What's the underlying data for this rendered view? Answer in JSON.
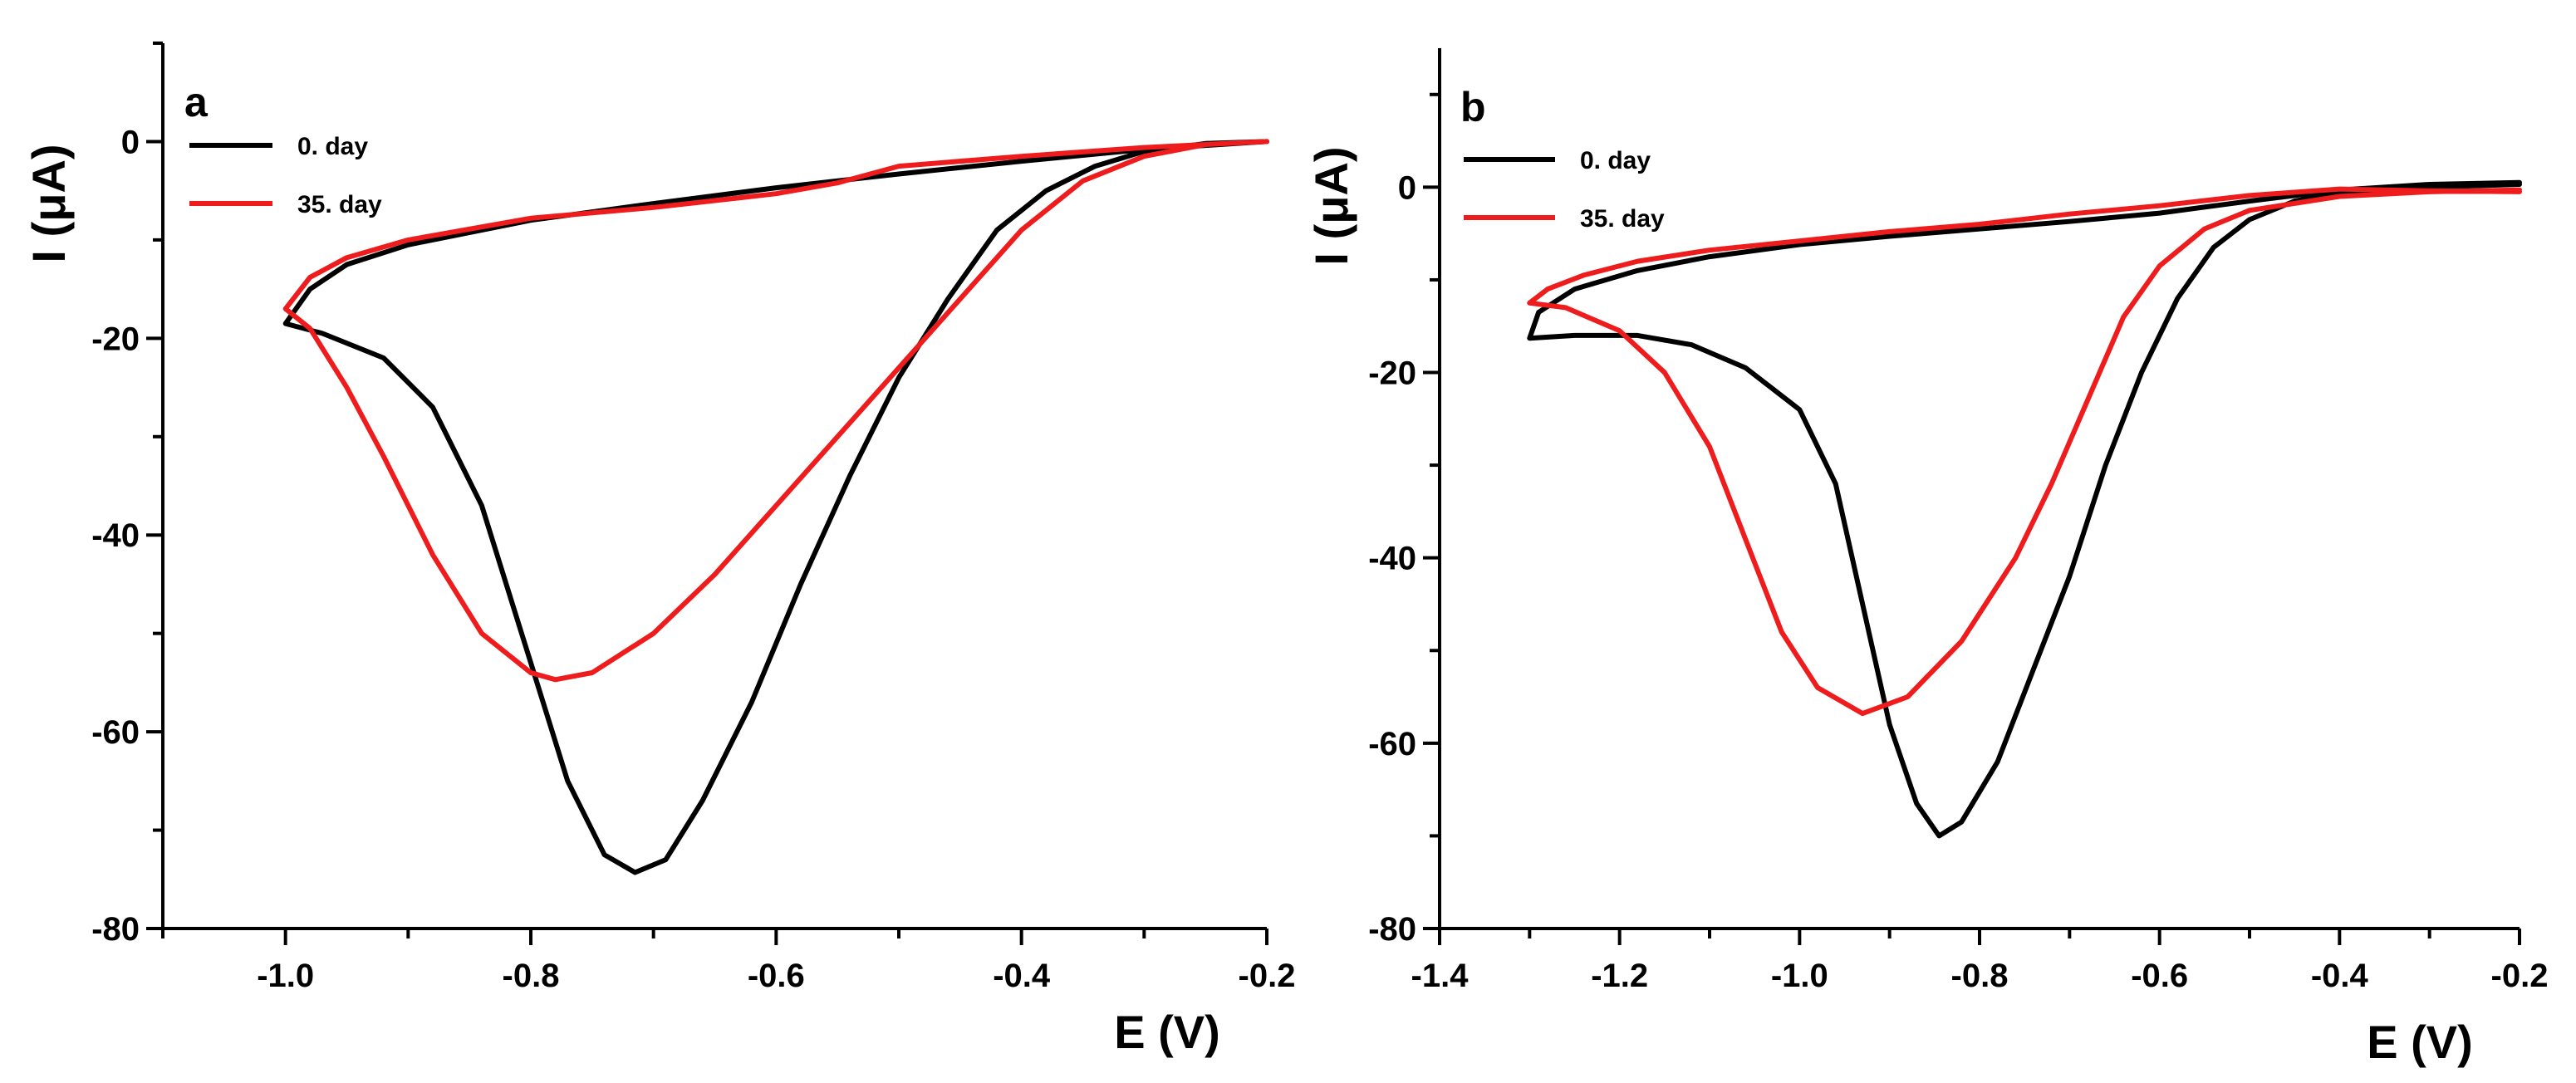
{
  "chart_data": [
    {
      "type": "line",
      "panel_label": "a",
      "xlabel": "E (V)",
      "ylabel": "I (μA)",
      "xlim": [
        -1.1,
        -0.2
      ],
      "ylim": [
        -80,
        10
      ],
      "xticks": [
        -1.0,
        -0.8,
        -0.6,
        -0.4,
        -0.2
      ],
      "xtick_labels": [
        "-1.0",
        "-0.8",
        "-0.6",
        "-0.4",
        "-0.2"
      ],
      "yticks": [
        -80,
        -60,
        -40,
        -20,
        0
      ],
      "ytick_labels": [
        "-80",
        "-60",
        "-40",
        "-20",
        "0"
      ],
      "legend_position": "top-left",
      "series": [
        {
          "name": "0. day",
          "color": "#000000",
          "points": [
            [
              -0.2,
              0
            ],
            [
              -0.3,
              -0.8
            ],
            [
              -0.4,
              -2.0
            ],
            [
              -0.5,
              -3.3
            ],
            [
              -0.6,
              -4.7
            ],
            [
              -0.7,
              -6.3
            ],
            [
              -0.8,
              -8.0
            ],
            [
              -0.9,
              -10.5
            ],
            [
              -0.95,
              -12.5
            ],
            [
              -0.98,
              -15
            ],
            [
              -1.0,
              -18.5
            ],
            [
              -0.97,
              -19.5
            ],
            [
              -0.92,
              -22
            ],
            [
              -0.88,
              -27
            ],
            [
              -0.84,
              -37
            ],
            [
              -0.8,
              -53
            ],
            [
              -0.77,
              -65
            ],
            [
              -0.74,
              -72.5
            ],
            [
              -0.715,
              -74.3
            ],
            [
              -0.69,
              -73
            ],
            [
              -0.66,
              -67
            ],
            [
              -0.62,
              -57
            ],
            [
              -0.58,
              -45
            ],
            [
              -0.54,
              -34
            ],
            [
              -0.5,
              -24
            ],
            [
              -0.46,
              -16
            ],
            [
              -0.42,
              -9
            ],
            [
              -0.38,
              -5
            ],
            [
              -0.34,
              -2.5
            ],
            [
              -0.3,
              -1.0
            ],
            [
              -0.25,
              -0.2
            ],
            [
              -0.2,
              0
            ]
          ]
        },
        {
          "name": "35. day",
          "color": "#ee1c1c",
          "points": [
            [
              -0.2,
              0
            ],
            [
              -0.3,
              -0.6
            ],
            [
              -0.4,
              -1.5
            ],
            [
              -0.5,
              -2.5
            ],
            [
              -0.55,
              -4.2
            ],
            [
              -0.6,
              -5.3
            ],
            [
              -0.7,
              -6.7
            ],
            [
              -0.8,
              -7.8
            ],
            [
              -0.9,
              -10
            ],
            [
              -0.95,
              -11.8
            ],
            [
              -0.98,
              -13.8
            ],
            [
              -1.0,
              -17
            ],
            [
              -0.98,
              -19
            ],
            [
              -0.95,
              -25
            ],
            [
              -0.92,
              -32
            ],
            [
              -0.88,
              -42
            ],
            [
              -0.84,
              -50
            ],
            [
              -0.8,
              -54
            ],
            [
              -0.78,
              -54.7
            ],
            [
              -0.75,
              -54
            ],
            [
              -0.7,
              -50
            ],
            [
              -0.65,
              -44
            ],
            [
              -0.6,
              -37
            ],
            [
              -0.55,
              -30
            ],
            [
              -0.5,
              -23
            ],
            [
              -0.45,
              -16
            ],
            [
              -0.4,
              -9
            ],
            [
              -0.35,
              -4
            ],
            [
              -0.3,
              -1.5
            ],
            [
              -0.25,
              -0.3
            ],
            [
              -0.2,
              0
            ]
          ]
        }
      ]
    },
    {
      "type": "line",
      "panel_label": "b",
      "xlabel": "E (V)",
      "ylabel": "I (μA)",
      "xlim": [
        -1.4,
        -0.2
      ],
      "ylim": [
        -80,
        15
      ],
      "xticks": [
        -1.4,
        -1.2,
        -1.0,
        -0.8,
        -0.6,
        -0.4,
        -0.2
      ],
      "xtick_labels": [
        "-1.4",
        "-1.2",
        "-1.0",
        "-0.8",
        "-0.6",
        "-0.4",
        "-0.2"
      ],
      "yticks": [
        -80,
        -60,
        -40,
        -20,
        0
      ],
      "ytick_labels": [
        "-80",
        "-60",
        "-40",
        "-20",
        "0"
      ],
      "legend_position": "top-left",
      "series": [
        {
          "name": "0. day",
          "color": "#000000",
          "points": [
            [
              -0.2,
              0.5
            ],
            [
              -0.3,
              0.3
            ],
            [
              -0.4,
              -0.3
            ],
            [
              -0.5,
              -1.5
            ],
            [
              -0.6,
              -2.8
            ],
            [
              -0.7,
              -3.7
            ],
            [
              -0.8,
              -4.5
            ],
            [
              -0.9,
              -5.3
            ],
            [
              -1.0,
              -6.2
            ],
            [
              -1.1,
              -7.5
            ],
            [
              -1.18,
              -9
            ],
            [
              -1.25,
              -11
            ],
            [
              -1.29,
              -13.5
            ],
            [
              -1.3,
              -16.3
            ],
            [
              -1.25,
              -16
            ],
            [
              -1.18,
              -16
            ],
            [
              -1.12,
              -17
            ],
            [
              -1.06,
              -19.5
            ],
            [
              -1.0,
              -24
            ],
            [
              -0.96,
              -32
            ],
            [
              -0.93,
              -45
            ],
            [
              -0.9,
              -58
            ],
            [
              -0.87,
              -66.5
            ],
            [
              -0.845,
              -70
            ],
            [
              -0.82,
              -68.5
            ],
            [
              -0.78,
              -62
            ],
            [
              -0.74,
              -52
            ],
            [
              -0.7,
              -42
            ],
            [
              -0.66,
              -30
            ],
            [
              -0.62,
              -20
            ],
            [
              -0.58,
              -12
            ],
            [
              -0.54,
              -6.5
            ],
            [
              -0.5,
              -3.5
            ],
            [
              -0.45,
              -1.5
            ],
            [
              -0.4,
              -0.6
            ],
            [
              -0.3,
              0
            ],
            [
              -0.2,
              0.3
            ]
          ]
        },
        {
          "name": "35. day",
          "color": "#ee1c1c",
          "points": [
            [
              -0.2,
              -0.5
            ],
            [
              -0.3,
              -0.4
            ],
            [
              -0.4,
              -0.2
            ],
            [
              -0.5,
              -0.9
            ],
            [
              -0.6,
              -2
            ],
            [
              -0.7,
              -2.9
            ],
            [
              -0.8,
              -4
            ],
            [
              -0.9,
              -4.8
            ],
            [
              -1.0,
              -5.8
            ],
            [
              -1.1,
              -6.8
            ],
            [
              -1.18,
              -8
            ],
            [
              -1.24,
              -9.5
            ],
            [
              -1.28,
              -11
            ],
            [
              -1.3,
              -12.5
            ],
            [
              -1.26,
              -13
            ],
            [
              -1.2,
              -15.5
            ],
            [
              -1.15,
              -20
            ],
            [
              -1.1,
              -28
            ],
            [
              -1.06,
              -38
            ],
            [
              -1.02,
              -48
            ],
            [
              -0.98,
              -54
            ],
            [
              -0.93,
              -56.8
            ],
            [
              -0.88,
              -55
            ],
            [
              -0.82,
              -49
            ],
            [
              -0.76,
              -40
            ],
            [
              -0.72,
              -32
            ],
            [
              -0.68,
              -23
            ],
            [
              -0.64,
              -14
            ],
            [
              -0.6,
              -8.5
            ],
            [
              -0.55,
              -4.5
            ],
            [
              -0.5,
              -2.5
            ],
            [
              -0.4,
              -1
            ],
            [
              -0.3,
              -0.5
            ],
            [
              -0.2,
              -0.3
            ]
          ]
        }
      ]
    }
  ]
}
